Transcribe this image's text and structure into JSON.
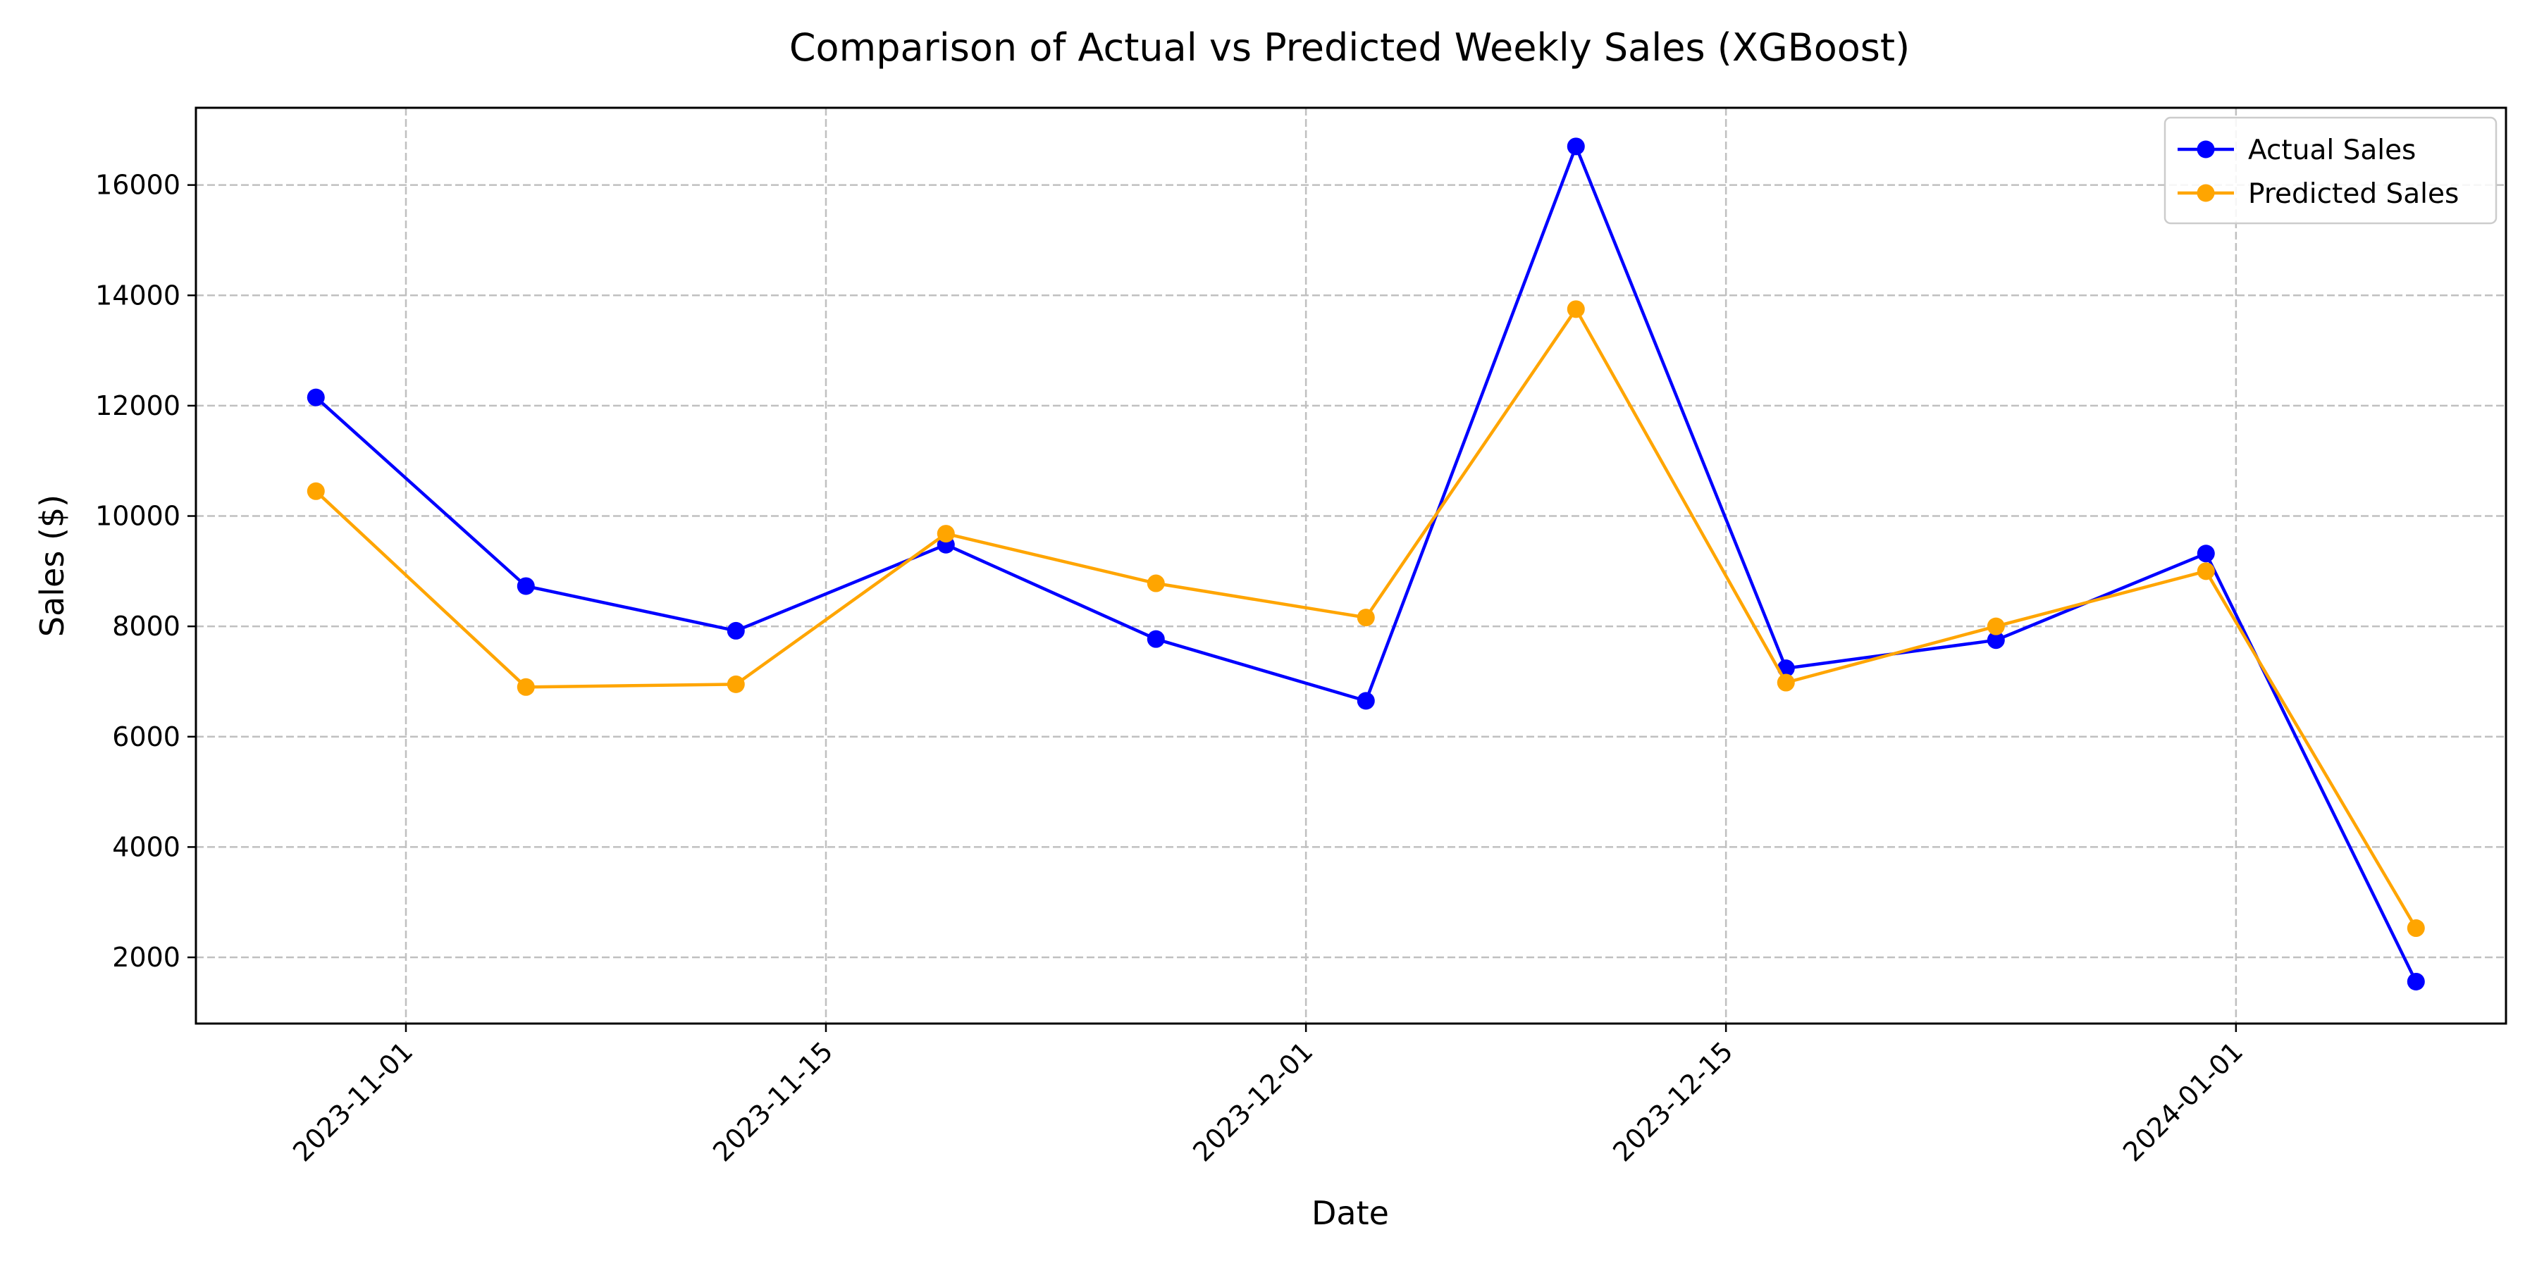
{
  "chart_data": {
    "type": "line",
    "title": "Comparison of Actual vs Predicted Weekly Sales (XGBoost)",
    "xlabel": "Date",
    "ylabel": "Sales ($)",
    "x": [
      "2023-10-29",
      "2023-11-05",
      "2023-11-12",
      "2023-11-19",
      "2023-11-26",
      "2023-12-03",
      "2023-12-10",
      "2023-12-17",
      "2023-12-24",
      "2023-12-31",
      "2024-01-07"
    ],
    "series": [
      {
        "name": "Actual Sales",
        "color": "#0000ff",
        "values": [
          12150,
          8730,
          7920,
          9480,
          7770,
          6650,
          16700,
          7240,
          7750,
          9320,
          1560
        ]
      },
      {
        "name": "Predicted Sales",
        "color": "#ffa500",
        "values": [
          10450,
          6900,
          6950,
          9680,
          8780,
          8160,
          13750,
          6980,
          8000,
          9000,
          2530
        ]
      }
    ],
    "xticks": [
      "2023-11-01",
      "2023-11-15",
      "2023-12-01",
      "2023-12-15",
      "2024-01-01"
    ],
    "yticks": [
      2000,
      4000,
      6000,
      8000,
      10000,
      12000,
      14000,
      16000
    ],
    "xlim": [
      "2023-10-25",
      "2024-01-10"
    ],
    "ylim": [
      800,
      17400
    ],
    "grid": true,
    "grid_style": "dashed",
    "legend_position": "top-right",
    "marker": "circle"
  }
}
